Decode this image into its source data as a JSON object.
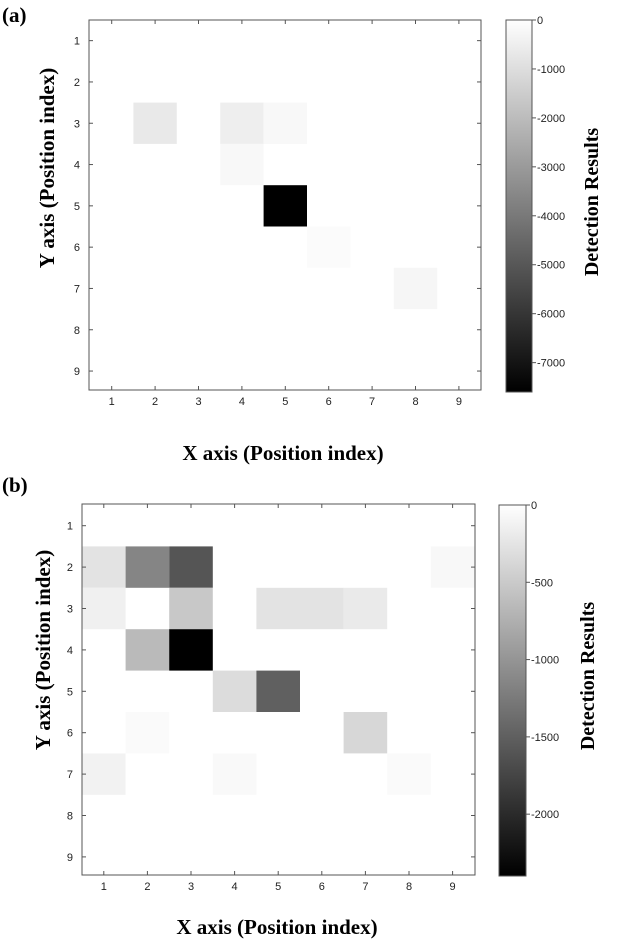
{
  "chart_data": [
    {
      "type": "heatmap",
      "panel_label": "(a)",
      "xlabel": "X axis (Position index)",
      "ylabel": "Y axis (Position index)",
      "x_ticks": [
        "1",
        "2",
        "3",
        "4",
        "5",
        "6",
        "7",
        "8",
        "9"
      ],
      "y_ticks": [
        "1",
        "2",
        "3",
        "4",
        "5",
        "6",
        "7",
        "8",
        "9"
      ],
      "colorbar_label": "Detection Results",
      "colorbar_range": [
        -7600,
        0
      ],
      "colorbar_ticks": [
        "0",
        "-1000",
        "-2000",
        "-3000",
        "-4000",
        "-5000",
        "-6000",
        "-7000"
      ],
      "colormap": "gray",
      "values": [
        [
          0,
          0,
          0,
          0,
          0,
          0,
          0,
          0,
          0
        ],
        [
          0,
          0,
          0,
          0,
          0,
          0,
          0,
          0,
          0
        ],
        [
          0,
          -650,
          0,
          -520,
          -200,
          0,
          0,
          0,
          0
        ],
        [
          0,
          0,
          0,
          -200,
          0,
          0,
          0,
          0,
          0
        ],
        [
          0,
          0,
          0,
          0,
          -7600,
          0,
          0,
          0,
          0
        ],
        [
          0,
          0,
          0,
          0,
          0,
          -120,
          0,
          0,
          0
        ],
        [
          0,
          0,
          0,
          0,
          0,
          0,
          0,
          -260,
          0
        ],
        [
          0,
          0,
          0,
          0,
          0,
          0,
          0,
          0,
          0
        ],
        [
          0,
          0,
          0,
          0,
          0,
          0,
          0,
          0,
          0
        ]
      ]
    },
    {
      "type": "heatmap",
      "panel_label": "(b)",
      "xlabel": "X axis (Position index)",
      "ylabel": "Y axis (Position index)",
      "x_ticks": [
        "1",
        "2",
        "3",
        "4",
        "5",
        "6",
        "7",
        "8",
        "9"
      ],
      "y_ticks": [
        "1",
        "2",
        "3",
        "4",
        "5",
        "6",
        "7",
        "8",
        "9"
      ],
      "colorbar_label": "Detection Results",
      "colorbar_range": [
        -2400,
        0
      ],
      "colorbar_ticks": [
        "0",
        "-500",
        "-1000",
        "-1500",
        "-2000"
      ],
      "colormap": "gray",
      "values": [
        [
          0,
          0,
          0,
          0,
          0,
          0,
          0,
          0,
          0
        ],
        [
          -260,
          -1150,
          -1600,
          0,
          0,
          0,
          0,
          0,
          -70
        ],
        [
          -140,
          0,
          -520,
          0,
          -260,
          -260,
          -200,
          0,
          0
        ],
        [
          0,
          -650,
          -2400,
          0,
          0,
          0,
          0,
          0,
          0
        ],
        [
          0,
          0,
          0,
          -330,
          -1500,
          0,
          0,
          0,
          0
        ],
        [
          0,
          -50,
          0,
          0,
          0,
          0,
          -380,
          0,
          0
        ],
        [
          -120,
          0,
          0,
          -60,
          0,
          0,
          0,
          -50,
          0
        ],
        [
          0,
          0,
          0,
          0,
          0,
          0,
          0,
          0,
          0
        ],
        [
          0,
          0,
          0,
          0,
          0,
          0,
          0,
          0,
          0
        ]
      ]
    }
  ]
}
